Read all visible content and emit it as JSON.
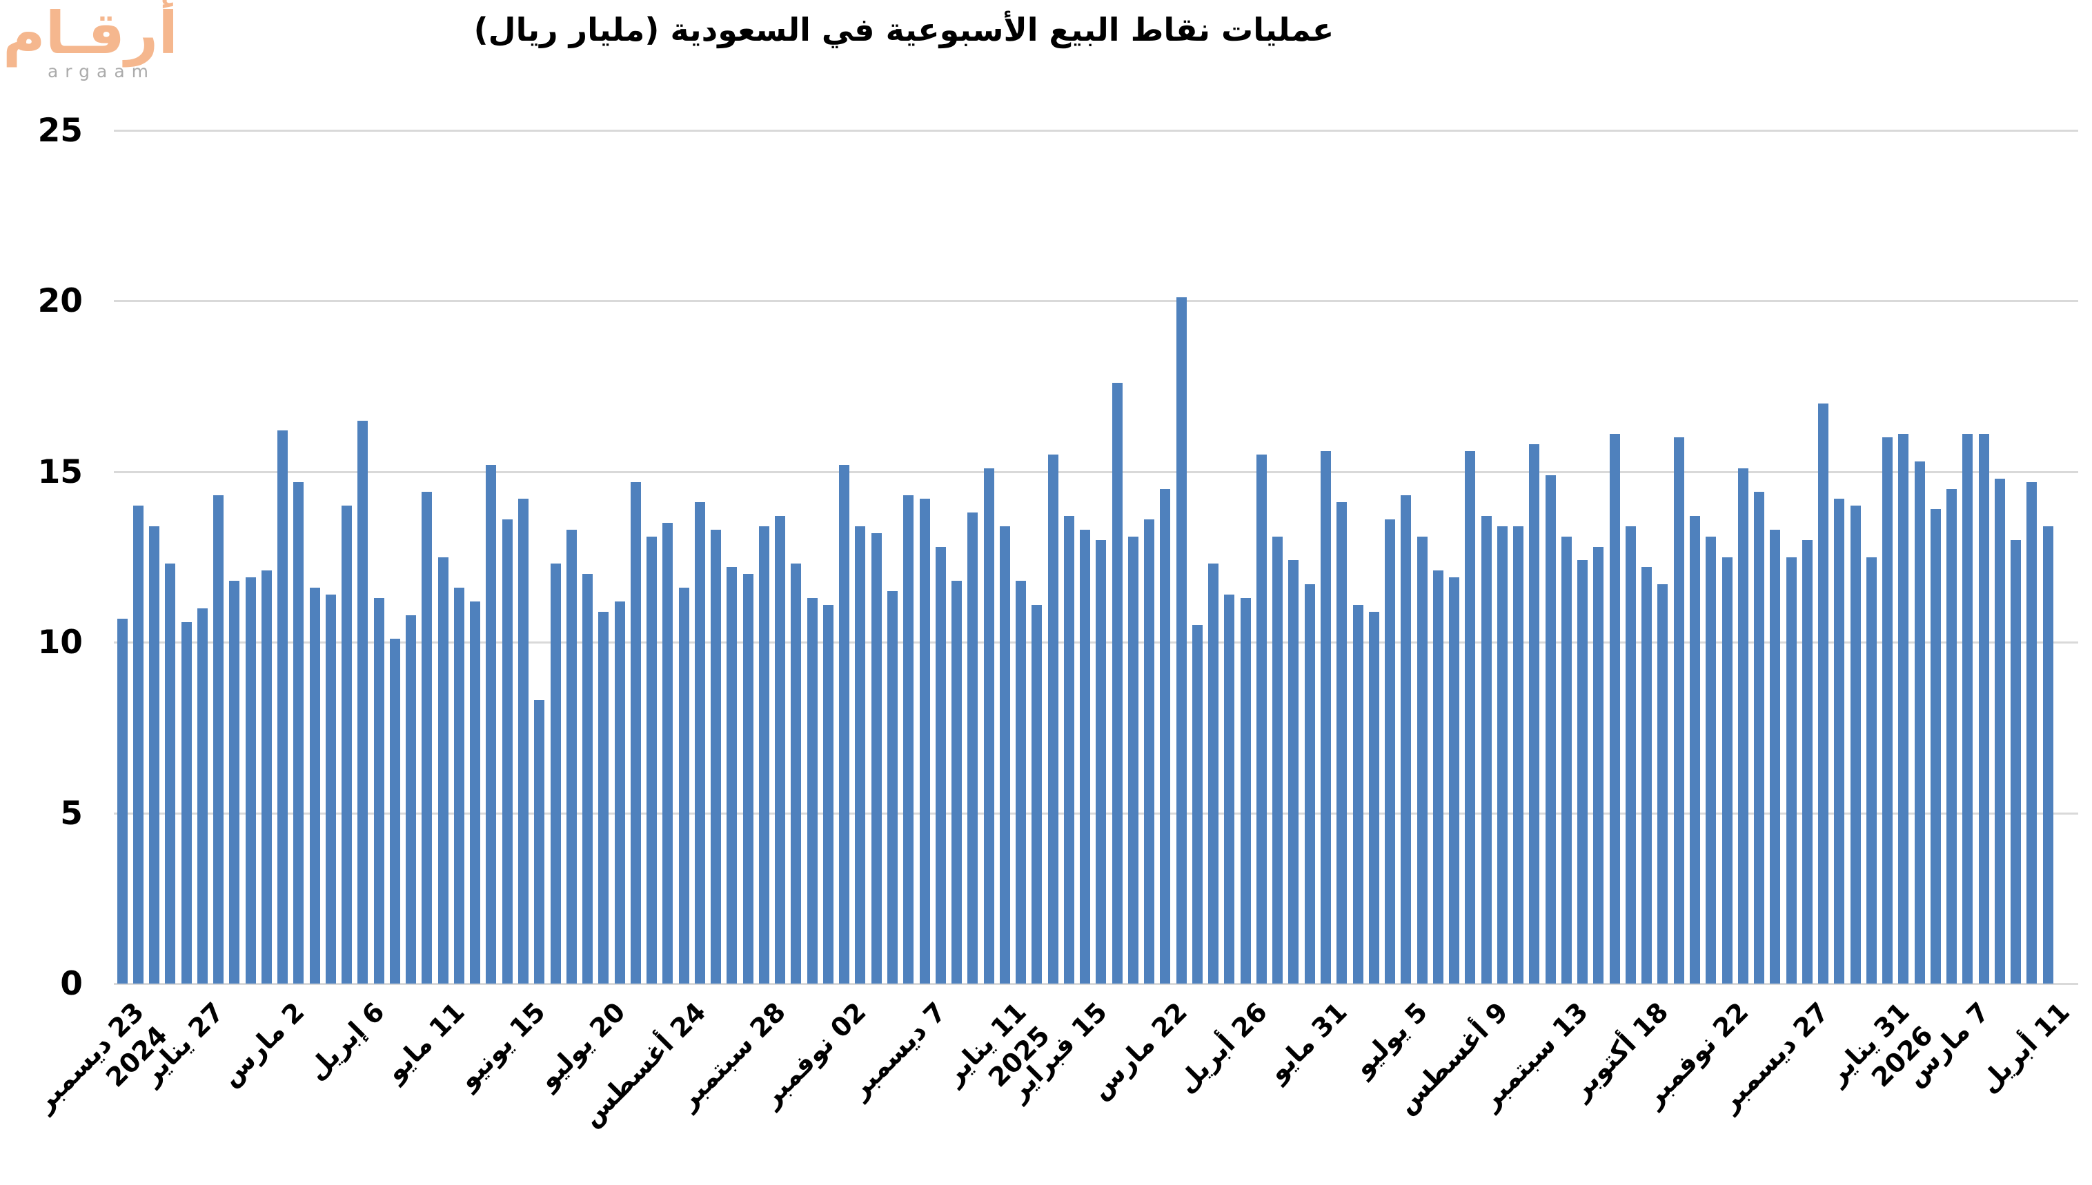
{
  "logo": {
    "arabic": "أرقـام",
    "latin": "argaam",
    "arabic_color": "#F5B78E",
    "latin_color": "#ABABAB"
  },
  "title": "عمليات نقاط البيع الأسبوعية في السعودية (مليار ريال)",
  "chart_data": {
    "type": "bar",
    "title": "عمليات نقاط البيع الأسبوعية في السعودية (مليار ريال)",
    "xlabel": "",
    "ylabel": "",
    "ylim": [
      0,
      25
    ],
    "yticks": [
      0,
      5,
      10,
      15,
      20,
      25
    ],
    "grid": true,
    "legend": false,
    "bar_color": "#4F81BD",
    "gridline_color": "#D9D9D9",
    "x_tick_every": 5,
    "x_ticks": [
      {
        "label": "23 ديسمبر",
        "year": "2024"
      },
      {
        "label": "27 يناير"
      },
      {
        "label": "2 مارس"
      },
      {
        "label": "6 إبريل"
      },
      {
        "label": "11 مايو"
      },
      {
        "label": "15 يونيو"
      },
      {
        "label": "20 يوليو"
      },
      {
        "label": "24 أغسطس"
      },
      {
        "label": "28 سبتمبر"
      },
      {
        "label": "02 نوفمبر"
      },
      {
        "label": "7 ديسمبر"
      },
      {
        "label": "11 يناير",
        "year": "2025"
      },
      {
        "label": "15 فبراير"
      },
      {
        "label": "22 مارس"
      },
      {
        "label": "26 أبريل"
      },
      {
        "label": "31 مايو"
      },
      {
        "label": "5 يوليو"
      },
      {
        "label": "9 أغسطس"
      },
      {
        "label": "13 سبتمبر"
      },
      {
        "label": "18 أكتوبر"
      },
      {
        "label": "22 نوفمبر"
      },
      {
        "label": "27 ديسمبر"
      },
      {
        "label": "31 يناير",
        "year": "2026"
      },
      {
        "label": "7 مارس"
      },
      {
        "label": "11 أبريل"
      }
    ],
    "values": [
      10.7,
      14.0,
      13.4,
      12.3,
      10.6,
      11.0,
      14.3,
      11.8,
      11.9,
      12.1,
      16.2,
      14.7,
      11.6,
      11.4,
      14.0,
      16.5,
      11.3,
      10.1,
      10.8,
      14.4,
      12.5,
      11.6,
      11.2,
      15.2,
      13.6,
      14.2,
      8.3,
      12.3,
      13.3,
      12.0,
      10.9,
      11.2,
      14.7,
      13.1,
      13.5,
      11.6,
      14.1,
      13.3,
      12.2,
      12.0,
      13.4,
      13.7,
      12.3,
      11.3,
      11.1,
      15.2,
      13.4,
      13.2,
      11.5,
      14.3,
      14.2,
      12.8,
      11.8,
      13.8,
      15.1,
      13.4,
      11.8,
      11.1,
      15.5,
      13.7,
      13.3,
      13.0,
      17.6,
      13.1,
      13.6,
      14.5,
      20.1,
      10.5,
      12.3,
      11.4,
      11.3,
      15.5,
      13.1,
      12.4,
      11.7,
      15.6,
      14.1,
      11.1,
      10.9,
      13.6,
      14.3,
      13.1,
      12.1,
      11.9,
      15.6,
      13.7,
      13.4,
      13.4,
      15.8,
      14.9,
      13.1,
      12.4,
      12.8,
      16.1,
      13.4,
      12.2,
      11.7,
      16.0,
      13.7,
      13.1,
      12.5,
      15.1,
      14.4,
      13.3,
      12.5,
      13.0,
      17.0,
      14.2,
      14.0,
      12.5,
      16.0,
      16.1,
      15.3,
      13.9,
      14.5,
      16.1,
      16.1,
      14.8,
      13.0,
      14.7,
      13.4
    ]
  }
}
